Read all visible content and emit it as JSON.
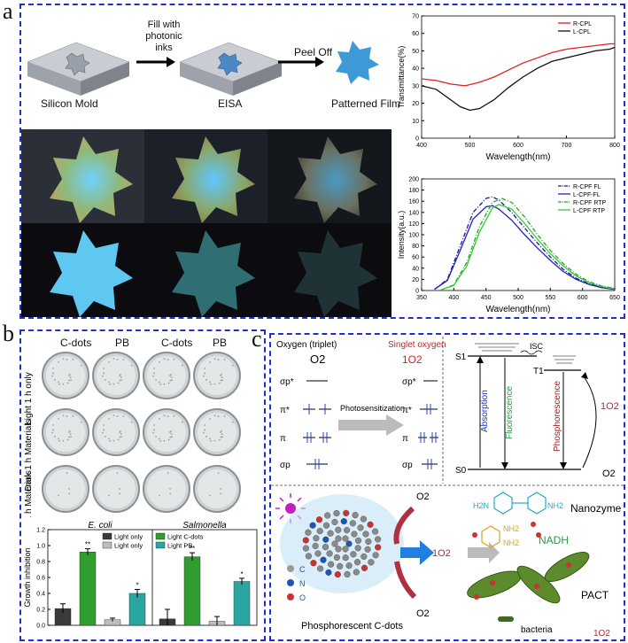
{
  "panels": {
    "a": "a",
    "b": "b",
    "c": "c"
  },
  "panel_a": {
    "process": {
      "step1_label": "Silicon Mold",
      "arrow1_label": "Fill with photonic inks",
      "step2_label": "EISA",
      "arrow2_label": "Peel Off",
      "step3_label": "Patterned Film"
    }
  },
  "panel_b": {
    "col_headers": [
      "C-dots",
      "PB",
      "C-dots",
      "PB"
    ],
    "row_labels": [
      "Light 1 h only",
      "Dark 1 h Materials",
      "Light 1 h Materials"
    ],
    "bar_group_titles": [
      "E. coli",
      "Salmonella"
    ]
  },
  "panel_c": {
    "oxygen_triplet": "Oxygen (triplet)",
    "o2": "O2",
    "singlet_oxygen": "Singlet oxygen",
    "singlet_symbol": "1O2",
    "photosensitization": "Photosensitization",
    "orbitals": [
      "σp*",
      "π*",
      "π",
      "σp"
    ],
    "jablonski": {
      "s1": "S1",
      "t1": "T1",
      "s0": "S0",
      "isc": "ISC",
      "absorption": "Absorption",
      "fluorescence": "Fluorescence",
      "phosphorescence": "Phosphorescence",
      "singlet_o2": "1O2",
      "o2": "O2"
    },
    "nanozyme": "Nanozyme",
    "nadh": "NADH",
    "pact": "PACT",
    "bacteria": "bacteria",
    "phosphorescent": "Phosphorescent C-dots",
    "legend_atoms": [
      "C",
      "N",
      "O"
    ],
    "molecule_labels": [
      "H2N",
      "NH2",
      "NH2",
      "NH2"
    ],
    "o2_top": "O2",
    "o2_bottom": "O2",
    "singlet_arrow": "1O2",
    "bottom_singlet": "1O2"
  },
  "chart_data": [
    {
      "type": "line",
      "title": "",
      "xlabel": "Wavelength(nm)",
      "ylabel": "Transmittance(%)",
      "xlim": [
        400,
        800
      ],
      "ylim": [
        0,
        70
      ],
      "xticks": [
        400,
        500,
        600,
        700,
        800
      ],
      "yticks": [
        0,
        10,
        20,
        30,
        40,
        50,
        60,
        70
      ],
      "legend": "top-right",
      "series": [
        {
          "name": "R-CPL",
          "color": "#e02020",
          "x": [
            400,
            430,
            460,
            490,
            520,
            550,
            580,
            610,
            640,
            670,
            700,
            730,
            760,
            790,
            800
          ],
          "y": [
            34,
            33,
            31,
            30,
            32,
            35,
            39,
            43,
            46,
            49,
            51,
            52,
            53,
            54,
            54
          ]
        },
        {
          "name": "L-CPL",
          "color": "#111111",
          "x": [
            400,
            430,
            460,
            480,
            500,
            520,
            550,
            580,
            610,
            640,
            670,
            700,
            730,
            760,
            790,
            800
          ],
          "y": [
            30,
            28,
            22,
            18,
            16,
            17,
            22,
            29,
            35,
            40,
            44,
            46,
            48,
            50,
            51,
            52
          ]
        }
      ]
    },
    {
      "type": "line",
      "title": "",
      "xlabel": "Wavelength(nm)",
      "ylabel": "Intensity(a.u.)",
      "xlim": [
        350,
        650
      ],
      "ylim": [
        0,
        200
      ],
      "xticks": [
        350,
        400,
        450,
        500,
        550,
        600,
        650
      ],
      "yticks": [
        0,
        20,
        40,
        60,
        80,
        100,
        120,
        140,
        160,
        180,
        200
      ],
      "legend": "top-right",
      "series": [
        {
          "name": "R-CPF FL",
          "color": "#1a1a8c",
          "dash": "dashdot",
          "x": [
            370,
            390,
            410,
            430,
            450,
            460,
            470,
            490,
            510,
            530,
            550,
            570,
            590,
            610,
            630,
            650
          ],
          "y": [
            2,
            20,
            80,
            140,
            165,
            168,
            162,
            140,
            112,
            85,
            60,
            38,
            22,
            12,
            6,
            3
          ]
        },
        {
          "name": "L-CPF-FL",
          "color": "#2020c0",
          "dash": "solid",
          "x": [
            370,
            390,
            410,
            430,
            450,
            460,
            470,
            490,
            510,
            530,
            550,
            570,
            590,
            610,
            630,
            650
          ],
          "y": [
            2,
            18,
            72,
            128,
            150,
            152,
            146,
            126,
            100,
            76,
            54,
            34,
            20,
            11,
            5,
            2
          ]
        },
        {
          "name": "R-CPF RTP",
          "color": "#22aa22",
          "dash": "dashdot",
          "x": [
            380,
            400,
            420,
            440,
            460,
            475,
            490,
            510,
            530,
            550,
            570,
            590,
            610,
            630,
            650
          ],
          "y": [
            1,
            10,
            50,
            115,
            158,
            165,
            158,
            132,
            100,
            72,
            48,
            29,
            16,
            8,
            4
          ]
        },
        {
          "name": "L-CPF RTP",
          "color": "#33cc33",
          "dash": "solid",
          "x": [
            380,
            400,
            420,
            440,
            460,
            470,
            490,
            510,
            530,
            550,
            570,
            590,
            610,
            630,
            650
          ],
          "y": [
            1,
            9,
            44,
            105,
            148,
            154,
            146,
            120,
            92,
            66,
            44,
            26,
            14,
            7,
            3
          ]
        }
      ]
    },
    {
      "type": "bar",
      "xlabel": "",
      "ylabel": "Growth inhibition",
      "ylim": [
        0,
        1.2
      ],
      "yticks": [
        0.0,
        0.2,
        0.4,
        0.6,
        0.8,
        1.0,
        1.2
      ],
      "groups": [
        "E. coli",
        "Salmonella"
      ],
      "legend_left": [
        "Light only",
        "Light only"
      ],
      "legend_right": [
        "Light C-dots",
        "Light PB"
      ],
      "series": [
        {
          "name": "Light only",
          "color": "#3a3a3a",
          "values": [
            0.21,
            0.08
          ],
          "errors": [
            0.06,
            0.12
          ]
        },
        {
          "name": "Light C-dots",
          "color": "#2f9e2f",
          "values": [
            0.92,
            0.86
          ],
          "errors": [
            0.04,
            0.05
          ],
          "sig": [
            "**",
            "**"
          ]
        },
        {
          "name": "Light only",
          "color": "#bdbdbd",
          "values": [
            0.07,
            0.05
          ],
          "errors": [
            0.02,
            0.06
          ]
        },
        {
          "name": "Light PB",
          "color": "#2aa6a0",
          "values": [
            0.4,
            0.55
          ],
          "errors": [
            0.05,
            0.04
          ],
          "sig": [
            "*",
            "*"
          ]
        }
      ]
    }
  ]
}
